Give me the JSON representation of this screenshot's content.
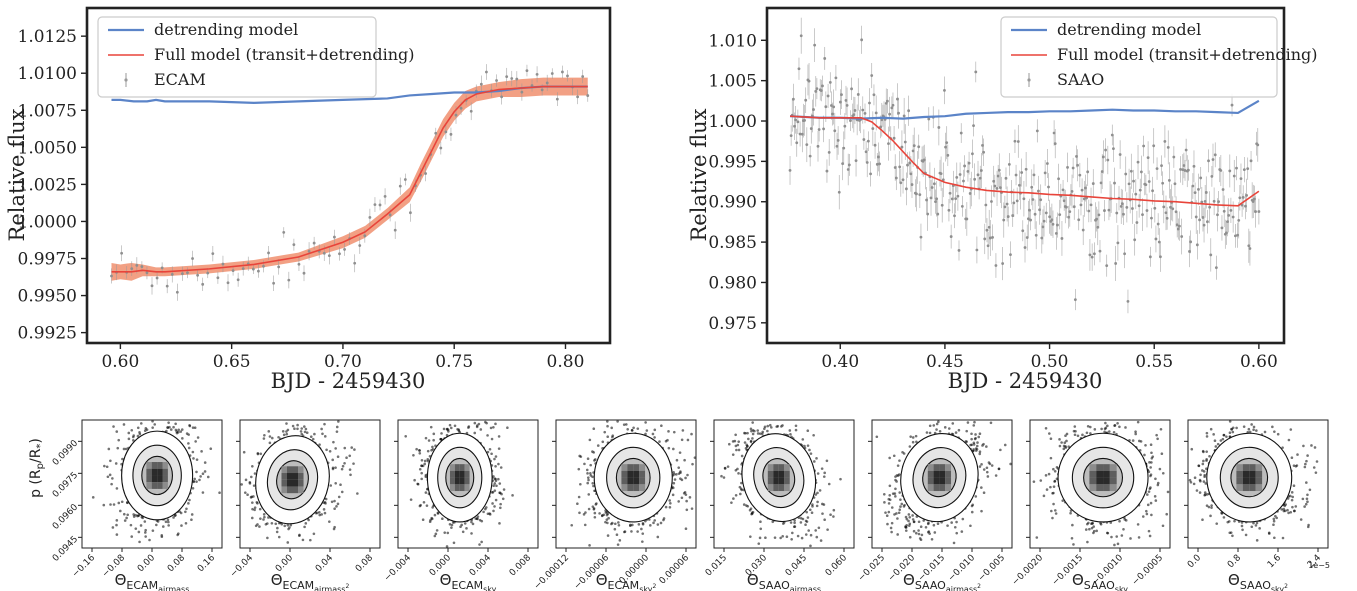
{
  "chart_data": [
    {
      "type": "line",
      "xlabel": "BJD - 2459430",
      "ylabel": "Relative flux",
      "xlim": [
        0.585,
        0.82
      ],
      "ylim": [
        0.9918,
        1.0144
      ],
      "xticks": [
        "0.60",
        "0.65",
        "0.70",
        "0.75",
        "0.80"
      ],
      "xtick_values": [
        0.6,
        0.65,
        0.7,
        0.75,
        0.8
      ],
      "yticks": [
        "0.9925",
        "0.9950",
        "0.9975",
        "1.0000",
        "1.0025",
        "1.0050",
        "1.0075",
        "1.0100",
        "1.0125"
      ],
      "ytick_values": [
        0.9925,
        0.995,
        0.9975,
        1.0,
        1.0025,
        1.005,
        1.0075,
        1.01,
        1.0125
      ],
      "legend_position": "top-left",
      "series": [
        {
          "name": "detrending model",
          "color": "#5b84c8",
          "x": [
            0.596,
            0.6,
            0.606,
            0.612,
            0.616,
            0.62,
            0.64,
            0.66,
            0.68,
            0.7,
            0.72,
            0.73,
            0.74,
            0.75,
            0.76,
            0.77,
            0.78,
            0.79,
            0.8,
            0.81
          ],
          "y": [
            1.0082,
            1.0082,
            1.0081,
            1.0081,
            1.0082,
            1.0081,
            1.0081,
            1.008,
            1.0081,
            1.0082,
            1.0083,
            1.0085,
            1.0086,
            1.0087,
            1.0087,
            1.0088,
            1.009,
            1.0091,
            1.0091,
            1.0091
          ]
        },
        {
          "name": "Full model (transit+detrending)",
          "color": "#e8443a",
          "x": [
            0.596,
            0.6,
            0.605,
            0.61,
            0.616,
            0.62,
            0.64,
            0.66,
            0.68,
            0.7,
            0.71,
            0.72,
            0.73,
            0.735,
            0.74,
            0.745,
            0.75,
            0.755,
            0.76,
            0.77,
            0.78,
            0.79,
            0.8,
            0.81
          ],
          "y": [
            0.9966,
            0.9966,
            0.9966,
            0.9967,
            0.9966,
            0.9966,
            0.9968,
            0.9971,
            0.9976,
            0.9986,
            0.9993,
            1.0005,
            1.0018,
            1.0033,
            1.0048,
            1.0063,
            1.0074,
            1.0082,
            1.0086,
            1.0089,
            1.009,
            1.0091,
            1.0091,
            1.0091
          ],
          "band": [
            0.0006,
            0.0005,
            0.0006,
            0.0004,
            0.0003,
            0.0003,
            0.0003,
            0.0003,
            0.0003,
            0.0004,
            0.0004,
            0.0004,
            0.0005,
            0.0006,
            0.0006,
            0.0006,
            0.0006,
            0.0006,
            0.0005,
            0.0005,
            0.0006,
            0.0006,
            0.0006,
            0.0006
          ]
        },
        {
          "name": "ECAM",
          "color": "#9a9a9a",
          "kind": "errorbar"
        }
      ]
    },
    {
      "type": "line",
      "xlabel": "BJD - 2459430",
      "ylabel": "Relative flux",
      "xlim": [
        0.365,
        0.612
      ],
      "ylim": [
        0.9725,
        1.014
      ],
      "xticks": [
        "0.40",
        "0.45",
        "0.50",
        "0.55",
        "0.60"
      ],
      "xtick_values": [
        0.4,
        0.45,
        0.5,
        0.55,
        0.6
      ],
      "yticks": [
        "0.975",
        "0.980",
        "0.985",
        "0.990",
        "0.995",
        "1.000",
        "1.005",
        "1.010"
      ],
      "ytick_values": [
        0.975,
        0.98,
        0.985,
        0.99,
        0.995,
        1.0,
        1.005,
        1.01
      ],
      "legend_position": "top-right",
      "series": [
        {
          "name": "detrending model",
          "color": "#5b84c8",
          "x": [
            0.376,
            0.39,
            0.4,
            0.41,
            0.42,
            0.43,
            0.44,
            0.45,
            0.46,
            0.47,
            0.48,
            0.49,
            0.5,
            0.51,
            0.52,
            0.53,
            0.54,
            0.55,
            0.56,
            0.57,
            0.58,
            0.59,
            0.6
          ],
          "y": [
            1.0006,
            1.0004,
            1.0004,
            1.0003,
            1.0004,
            1.0003,
            1.0005,
            1.0006,
            1.0009,
            1.001,
            1.0011,
            1.0011,
            1.0012,
            1.0012,
            1.0013,
            1.0014,
            1.0013,
            1.0013,
            1.0012,
            1.0012,
            1.0011,
            1.001,
            1.0025
          ]
        },
        {
          "name": "Full model (transit+detrending)",
          "color": "#e8443a",
          "x": [
            0.376,
            0.39,
            0.4,
            0.41,
            0.415,
            0.42,
            0.425,
            0.43,
            0.435,
            0.44,
            0.45,
            0.46,
            0.47,
            0.48,
            0.49,
            0.5,
            0.51,
            0.52,
            0.53,
            0.54,
            0.55,
            0.56,
            0.57,
            0.58,
            0.59,
            0.6
          ],
          "y": [
            1.0006,
            1.0004,
            1.0004,
            1.0004,
            0.9999,
            0.9988,
            0.9976,
            0.9962,
            0.9948,
            0.9935,
            0.9924,
            0.9918,
            0.9914,
            0.9912,
            0.9911,
            0.9909,
            0.9908,
            0.9906,
            0.9904,
            0.9903,
            0.9901,
            0.99,
            0.9898,
            0.9896,
            0.9895,
            0.9913
          ]
        },
        {
          "name": "SAAO",
          "color": "#9a9a9a",
          "kind": "errorbar"
        }
      ]
    },
    {
      "type": "scatter",
      "ylabel": "p (R",
      "ylabel_sub": "p",
      "ylabel_mid": "/R",
      "ylabel_sub2": "*",
      "ylabel_end": ")",
      "ylim": [
        0.094,
        0.1
      ],
      "yticks": [
        "0.0945",
        "0.0960",
        "0.0975",
        "0.0990"
      ],
      "ytick_values": [
        0.0945,
        0.096,
        0.0975,
        0.099
      ],
      "panels": [
        {
          "xlabel": "Θ",
          "xsub": "ECAM",
          "xsub2": "airmass",
          "xsup": "",
          "xticks": [
            "−0.16",
            "−0.08",
            "0.00",
            "0.08",
            "0.16"
          ],
          "xlim": [
            -0.22,
            0.19
          ],
          "center": [
            0.0,
            0.0974
          ],
          "spread": [
            0.045,
            0.0009
          ],
          "tilt": 0.0
        },
        {
          "xlabel": "Θ",
          "xsub": "ECAM",
          "xsub2": "airmass",
          "xsup": "2",
          "xticks": [
            "−0.04",
            "0.00",
            "0.04",
            "0.08"
          ],
          "xlim": [
            -0.065,
            0.095
          ],
          "center": [
            -0.005,
            0.0972
          ],
          "spread": [
            0.018,
            0.0009
          ],
          "tilt": -0.3
        },
        {
          "xlabel": "Θ",
          "xsub": "ECAM",
          "xsub2": "sky",
          "xsup": "",
          "xticks": [
            "−0.004",
            "0.000",
            "0.004",
            "0.008"
          ],
          "xlim": [
            -0.0075,
            0.0095
          ],
          "center": [
            0.0,
            0.0973
          ],
          "spread": [
            0.0017,
            0.0009
          ],
          "tilt": 0.0
        },
        {
          "xlabel": "Θ",
          "xsub": "ECAM",
          "xsub2": "sky",
          "xsup": "2",
          "xticks": [
            "−0.00012",
            "−0.00006",
            "0.00000",
            "0.00006"
          ],
          "xlim": [
            -0.00017,
            0.00012
          ],
          "center": [
            -1e-05,
            0.0973
          ],
          "spread": [
            3.5e-05,
            0.0009
          ],
          "tilt": 0.0
        },
        {
          "xlabel": "Θ",
          "xsub": "SAAO",
          "xsub2": "airmass",
          "xsup": "",
          "xticks": [
            "0.015",
            "0.030",
            "0.045",
            "0.060"
          ],
          "xlim": [
            0.005,
            0.072
          ],
          "center": [
            0.036,
            0.0973
          ],
          "spread": [
            0.0075,
            0.0009
          ],
          "tilt": 0.35
        },
        {
          "xlabel": "Θ",
          "xsub": "SAAO",
          "xsub2": "airmass",
          "xsup": "2",
          "xticks": [
            "−0.025",
            "−0.020",
            "−0.015",
            "−0.010",
            "−0.005"
          ],
          "xlim": [
            -0.029,
            -0.002
          ],
          "center": [
            -0.016,
            0.0973
          ],
          "spread": [
            0.0032,
            0.0009
          ],
          "tilt": -0.35
        },
        {
          "xlabel": "Θ",
          "xsub": "SAAO",
          "xsub2": "sky",
          "xsup": "",
          "xticks": [
            "−0.0020",
            "−0.0015",
            "−0.0010",
            "−0.0005"
          ],
          "xlim": [
            -0.0024,
            -0.0001
          ],
          "center": [
            -0.0012,
            0.0973
          ],
          "spread": [
            0.00032,
            0.0009
          ],
          "tilt": 0.0
        },
        {
          "xlabel": "Θ",
          "xsub": "SAAO",
          "xsub2": "sky",
          "xsup": "2",
          "xticks": [
            "0.0",
            "0.8",
            "1.6",
            "2.4"
          ],
          "xlim": [
            -0.2,
            3.0
          ],
          "center": [
            1.2,
            0.0973
          ],
          "spread": [
            0.42,
            0.0009
          ],
          "tilt": 0.05,
          "offset_text": "1e−5"
        }
      ]
    }
  ]
}
